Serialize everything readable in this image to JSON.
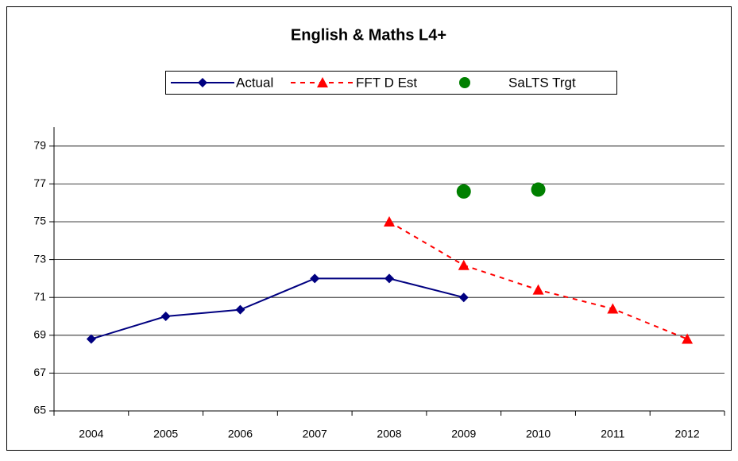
{
  "chart_data": {
    "type": "line",
    "title": "English & Maths L4+",
    "categories": [
      "2004",
      "2005",
      "2006",
      "2007",
      "2008",
      "2009",
      "2010",
      "2011",
      "2012"
    ],
    "series": [
      {
        "name": "Actual",
        "color": "#000080",
        "line": "solid",
        "marker": "diamond",
        "values": [
          68.8,
          70.0,
          70.35,
          72.0,
          72.0,
          71.0,
          null,
          null,
          null
        ]
      },
      {
        "name": "FFT D Est",
        "color": "#ff0000",
        "line": "dashed",
        "marker": "triangle",
        "values": [
          null,
          null,
          null,
          null,
          75.0,
          72.7,
          71.4,
          70.4,
          68.8
        ]
      },
      {
        "name": "SaLTS Trgt",
        "color": "#008000",
        "line": "none",
        "marker": "circle",
        "values": [
          null,
          null,
          null,
          null,
          null,
          76.6,
          76.7,
          null,
          null
        ]
      }
    ],
    "ylim": [
      65,
      80
    ],
    "yticks": [
      65,
      67,
      69,
      71,
      73,
      75,
      77,
      79
    ],
    "grid": true,
    "legend": "top"
  }
}
